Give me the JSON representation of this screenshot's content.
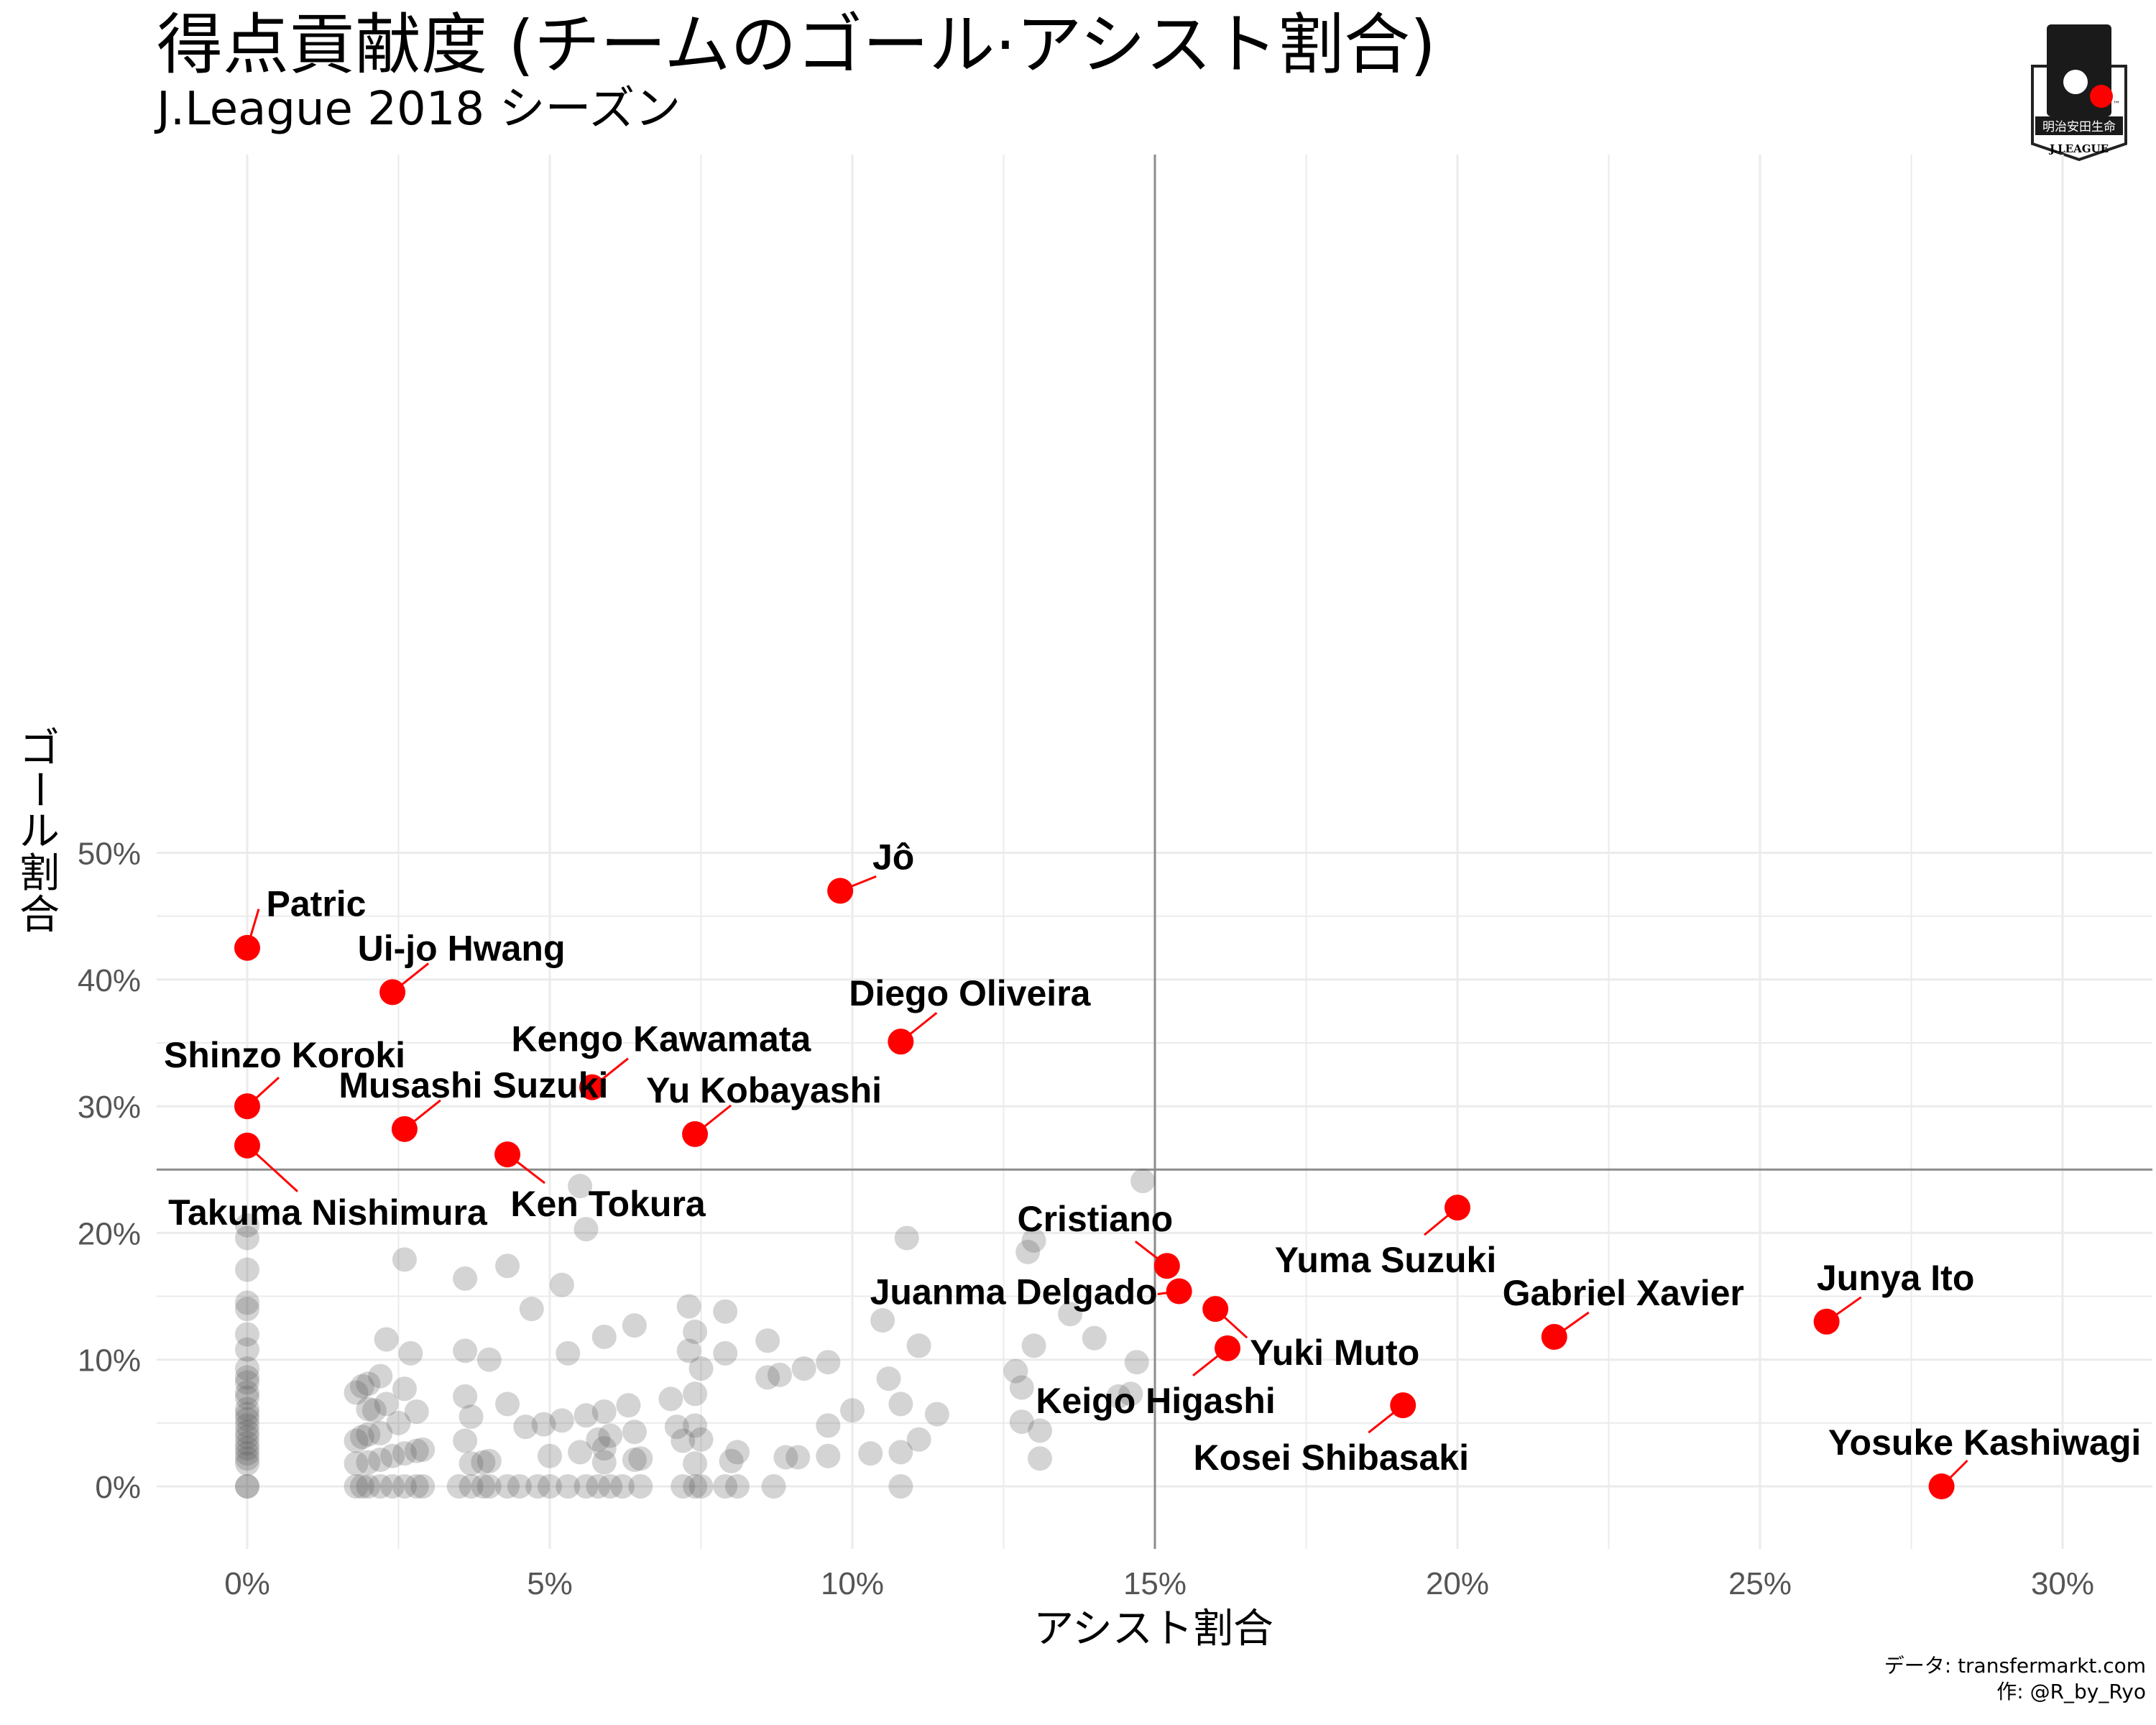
{
  "header": {
    "title": "得点貢献度 (チームのゴール·アシスト割合)",
    "subtitle": "J.League 2018 シーズン"
  },
  "logo": {
    "sponsor_text": "明治安田生命",
    "wordmark": "J.LEAGUE",
    "tm": "™"
  },
  "caption": {
    "line1": "データ: transfermarkt.com",
    "line2": "作: @R_by_Ryo"
  },
  "colors": {
    "highlight": "#ff0000",
    "background_points": "#555555",
    "grid": "#ebebeb",
    "reference_lines": "#8c8c8c"
  },
  "chart_data": {
    "type": "scatter",
    "title": "得点貢献度 (チームのゴール·アシスト割合)",
    "subtitle": "J.League 2018 シーズン",
    "xlabel": "アシスト割合",
    "ylabel": "ゴール割合",
    "xlim": [
      -1.5,
      31.5
    ],
    "ylim": [
      -2.5,
      52.5
    ],
    "x_ticks": [
      0,
      5,
      10,
      15,
      20,
      25,
      30
    ],
    "y_ticks": [
      0,
      10,
      20,
      30,
      40,
      50
    ],
    "x_tick_labels": [
      "0%",
      "5%",
      "10%",
      "15%",
      "20%",
      "25%",
      "30%"
    ],
    "y_tick_labels": [
      "0%",
      "10%",
      "20%",
      "30%",
      "40%",
      "50%"
    ],
    "reference_lines": {
      "x": 15,
      "y": 25
    },
    "grid": true,
    "highlighted": [
      {
        "name": "Jô",
        "x": 9.8,
        "y": 47.0
      },
      {
        "name": "Patric",
        "x": 0.0,
        "y": 42.5
      },
      {
        "name": "Ui-jo Hwang",
        "x": 2.4,
        "y": 39.0
      },
      {
        "name": "Diego Oliveira",
        "x": 10.8,
        "y": 35.1
      },
      {
        "name": "Kengo Kawamata",
        "x": 5.7,
        "y": 31.5
      },
      {
        "name": "Shinzo Koroki",
        "x": 0.0,
        "y": 30.0
      },
      {
        "name": "Musashi Suzuki",
        "x": 2.6,
        "y": 28.2
      },
      {
        "name": "Yu Kobayashi",
        "x": 7.4,
        "y": 27.8
      },
      {
        "name": "Takuma Nishimura",
        "x": 0.0,
        "y": 26.9
      },
      {
        "name": "Ken Tokura",
        "x": 4.3,
        "y": 26.2
      },
      {
        "name": "Yuma Suzuki",
        "x": 20.0,
        "y": 22.0
      },
      {
        "name": "Cristiano",
        "x": 15.2,
        "y": 17.4
      },
      {
        "name": "Juanma Delgado",
        "x": 15.4,
        "y": 15.4
      },
      {
        "name": "Yuki Muto",
        "x": 16.0,
        "y": 14.0
      },
      {
        "name": "Gabriel Xavier",
        "x": 21.6,
        "y": 11.8
      },
      {
        "name": "Junya Ito",
        "x": 26.1,
        "y": 13.0
      },
      {
        "name": "Keigo Higashi",
        "x": 16.2,
        "y": 10.9
      },
      {
        "name": "Kosei Shibasaki",
        "x": 19.1,
        "y": 6.4
      },
      {
        "name": "Yosuke Kashiwagi",
        "x": 28.0,
        "y": 0.0
      }
    ],
    "others": [
      [
        0,
        20.6
      ],
      [
        0,
        19.6
      ],
      [
        0,
        17.1
      ],
      [
        0,
        14.5
      ],
      [
        0,
        14.0
      ],
      [
        0,
        12.0
      ],
      [
        0,
        10.8
      ],
      [
        0,
        9.3
      ],
      [
        0,
        8.6
      ],
      [
        0,
        8.2
      ],
      [
        0,
        7.4
      ],
      [
        0,
        7.0
      ],
      [
        0,
        6.1
      ],
      [
        0,
        5.7
      ],
      [
        0,
        5.3
      ],
      [
        0,
        4.8
      ],
      [
        0,
        4.3
      ],
      [
        0,
        3.9
      ],
      [
        0,
        3.4
      ],
      [
        0,
        3.0
      ],
      [
        0,
        2.6
      ],
      [
        0,
        2.2
      ],
      [
        0,
        1.8
      ],
      [
        0,
        0
      ],
      [
        0,
        0
      ],
      [
        1.8,
        7.4
      ],
      [
        1.9,
        7.9
      ],
      [
        2.0,
        8.1
      ],
      [
        2.2,
        8.7
      ],
      [
        2.1,
        6.0
      ],
      [
        2.0,
        6.1
      ],
      [
        2.3,
        6.5
      ],
      [
        2.2,
        4.2
      ],
      [
        2.5,
        5.0
      ],
      [
        2.6,
        7.7
      ],
      [
        2.7,
        10.5
      ],
      [
        2.3,
        11.6
      ],
      [
        2.6,
        17.9
      ],
      [
        1.8,
        3.6
      ],
      [
        1.9,
        3.9
      ],
      [
        2.0,
        4.1
      ],
      [
        1.8,
        1.8
      ],
      [
        2.0,
        1.9
      ],
      [
        2.2,
        2.1
      ],
      [
        2.4,
        2.4
      ],
      [
        2.6,
        2.6
      ],
      [
        2.8,
        2.8
      ],
      [
        2.9,
        2.9
      ],
      [
        2.8,
        5.9
      ],
      [
        1.8,
        0
      ],
      [
        1.9,
        0
      ],
      [
        2.0,
        0
      ],
      [
        2.2,
        0
      ],
      [
        2.4,
        0
      ],
      [
        2.6,
        0
      ],
      [
        2.8,
        0
      ],
      [
        2.9,
        0
      ],
      [
        3.6,
        16.4
      ],
      [
        4.3,
        17.4
      ],
      [
        3.6,
        10.7
      ],
      [
        4.0,
        10.0
      ],
      [
        3.6,
        7.1
      ],
      [
        3.7,
        5.5
      ],
      [
        4.3,
        6.5
      ],
      [
        3.6,
        3.6
      ],
      [
        3.9,
        1.9
      ],
      [
        3.7,
        1.8
      ],
      [
        4.0,
        2.0
      ],
      [
        3.5,
        0
      ],
      [
        3.7,
        0
      ],
      [
        3.9,
        0
      ],
      [
        4.0,
        0
      ],
      [
        4.3,
        0
      ],
      [
        4.5,
        0
      ],
      [
        4.6,
        4.7
      ],
      [
        4.9,
        4.9
      ],
      [
        5.2,
        5.2
      ],
      [
        5.5,
        2.7
      ],
      [
        5.3,
        10.5
      ],
      [
        5.0,
        2.4
      ],
      [
        4.7,
        14.0
      ],
      [
        5.2,
        15.9
      ],
      [
        5.5,
        23.7
      ],
      [
        5.6,
        20.3
      ],
      [
        5.6,
        5.6
      ],
      [
        5.9,
        5.9
      ],
      [
        5.8,
        3.7
      ],
      [
        5.9,
        3.0
      ],
      [
        5.9,
        1.9
      ],
      [
        5.9,
        11.8
      ],
      [
        6.0,
        4.0
      ],
      [
        6.4,
        12.7
      ],
      [
        6.3,
        6.4
      ],
      [
        6.4,
        4.3
      ],
      [
        6.4,
        2.1
      ],
      [
        6.5,
        2.2
      ],
      [
        4.8,
        0
      ],
      [
        5.0,
        0
      ],
      [
        5.3,
        0
      ],
      [
        5.6,
        0
      ],
      [
        5.8,
        0
      ],
      [
        6.0,
        0
      ],
      [
        6.2,
        0
      ],
      [
        6.5,
        0
      ],
      [
        7.0,
        6.9
      ],
      [
        7.1,
        4.7
      ],
      [
        7.2,
        3.6
      ],
      [
        7.3,
        10.7
      ],
      [
        7.3,
        14.2
      ],
      [
        7.4,
        12.2
      ],
      [
        7.5,
        9.3
      ],
      [
        7.4,
        7.3
      ],
      [
        7.4,
        4.8
      ],
      [
        7.5,
        3.7
      ],
      [
        7.4,
        1.8
      ],
      [
        7.2,
        0
      ],
      [
        7.4,
        0
      ],
      [
        7.5,
        0
      ],
      [
        7.9,
        13.8
      ],
      [
        7.9,
        10.5
      ],
      [
        8.0,
        2.0
      ],
      [
        8.1,
        2.7
      ],
      [
        7.9,
        0
      ],
      [
        8.1,
        0
      ],
      [
        8.6,
        11.5
      ],
      [
        8.6,
        8.6
      ],
      [
        8.8,
        8.8
      ],
      [
        8.7,
        0
      ],
      [
        8.9,
        2.3
      ],
      [
        9.2,
        9.3
      ],
      [
        9.1,
        2.3
      ],
      [
        9.6,
        4.8
      ],
      [
        9.6,
        2.4
      ],
      [
        9.6,
        9.8
      ],
      [
        10.0,
        6.0
      ],
      [
        10.3,
        2.6
      ],
      [
        10.5,
        13.1
      ],
      [
        10.6,
        8.5
      ],
      [
        10.8,
        6.5
      ],
      [
        10.8,
        2.7
      ],
      [
        10.8,
        0
      ],
      [
        10.9,
        19.6
      ],
      [
        11.1,
        11.1
      ],
      [
        11.1,
        3.7
      ],
      [
        11.4,
        5.7
      ],
      [
        12.7,
        9.1
      ],
      [
        12.8,
        7.8
      ],
      [
        12.8,
        5.1
      ],
      [
        12.9,
        18.5
      ],
      [
        13.0,
        19.4
      ],
      [
        13.0,
        11.1
      ],
      [
        13.1,
        4.4
      ],
      [
        13.1,
        2.2
      ],
      [
        13.6,
        13.6
      ],
      [
        14.0,
        11.7
      ],
      [
        14.4,
        7.1
      ],
      [
        14.6,
        7.3
      ],
      [
        14.7,
        9.8
      ],
      [
        14.8,
        24.1
      ]
    ]
  }
}
